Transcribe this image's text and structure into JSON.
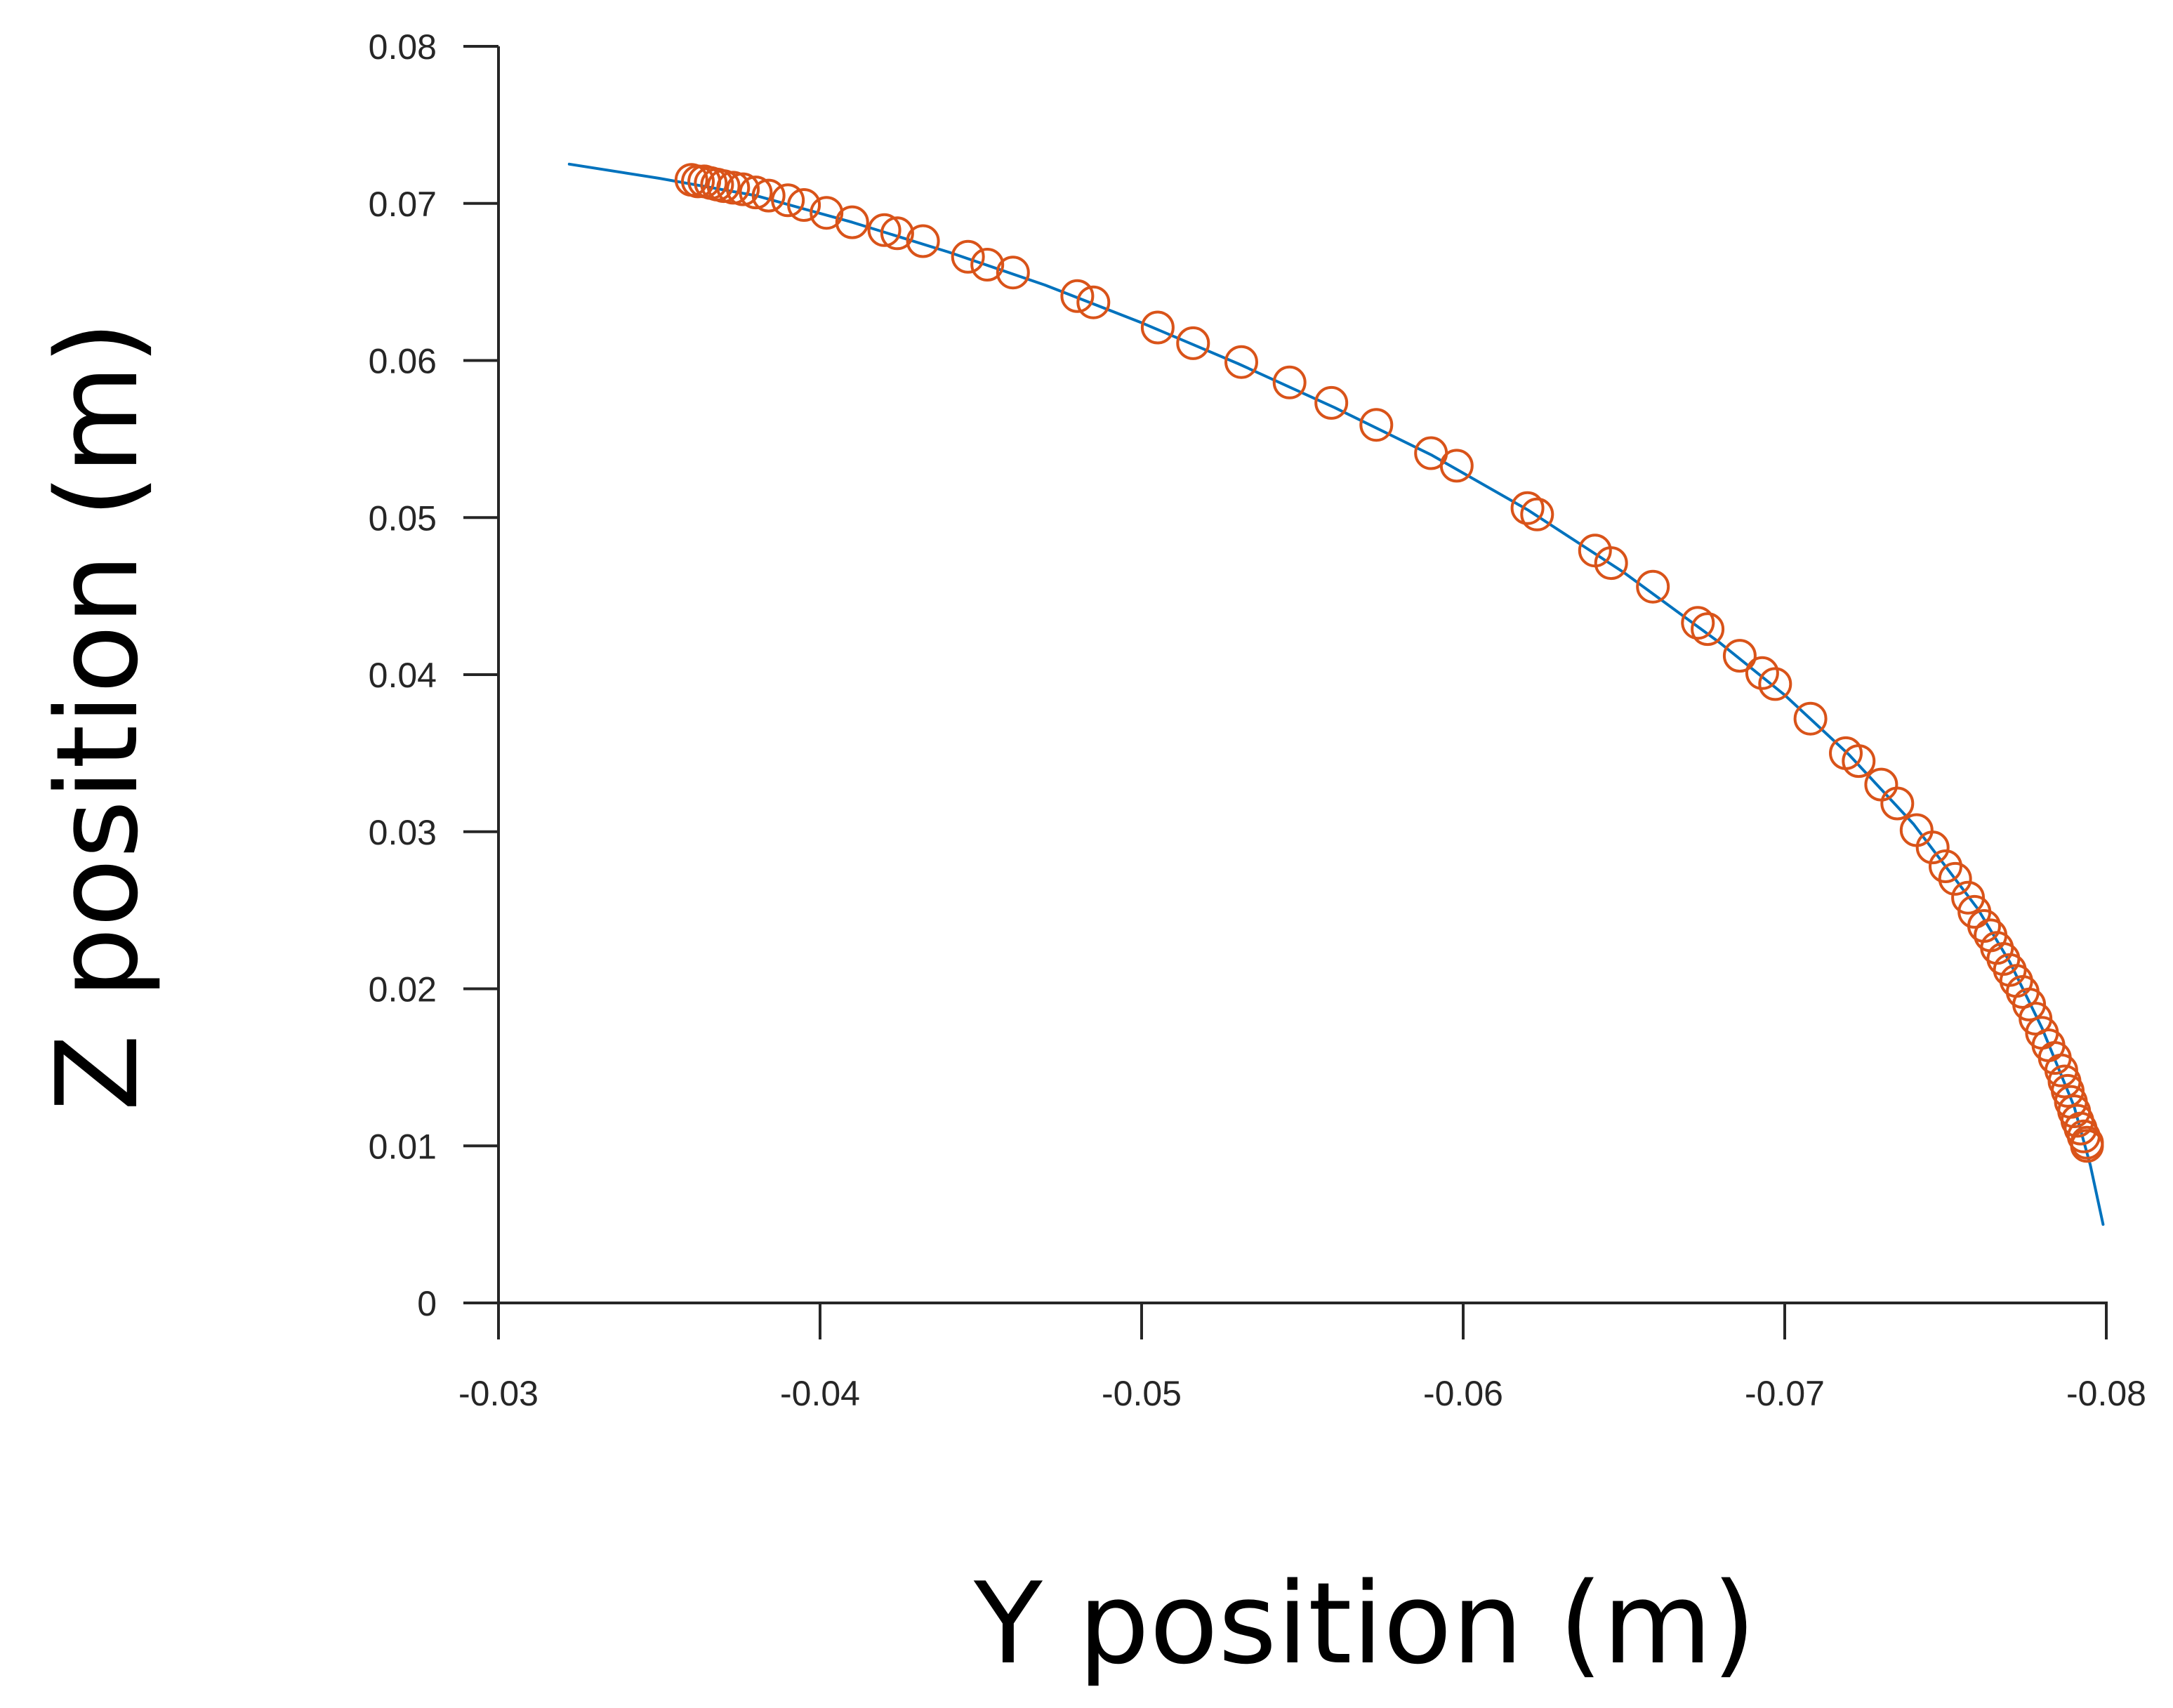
{
  "chart_data": {
    "type": "scatter",
    "xlabel": "Y position (m)",
    "ylabel": "Z position (m)",
    "xlim": [
      -0.03,
      -0.08
    ],
    "ylim": [
      0,
      0.08
    ],
    "x_reversed": true,
    "xticks": [
      -0.03,
      -0.04,
      -0.05,
      -0.06,
      -0.07,
      -0.08
    ],
    "xtick_labels": [
      "-0.03",
      "-0.04",
      "-0.05",
      "-0.06",
      "-0.07",
      "-0.08"
    ],
    "yticks": [
      0,
      0.01,
      0.02,
      0.03,
      0.04,
      0.05,
      0.06,
      0.07,
      0.08
    ],
    "ytick_labels": [
      "0",
      "0.01",
      "0.02",
      "0.03",
      "0.04",
      "0.05",
      "0.06",
      "0.07",
      "0.08"
    ],
    "grid": false,
    "legend": "none",
    "series": [
      {
        "kind": "markers",
        "marker": "open-circle",
        "color": "#d95319",
        "points": [
          [
            -0.036,
            0.0715
          ],
          [
            -0.0362,
            0.0714
          ],
          [
            -0.0364,
            0.0714
          ],
          [
            -0.0366,
            0.0713
          ],
          [
            -0.0368,
            0.0712
          ],
          [
            -0.037,
            0.0711
          ],
          [
            -0.0373,
            0.071
          ],
          [
            -0.0376,
            0.0709
          ],
          [
            -0.038,
            0.0707
          ],
          [
            -0.0384,
            0.0705
          ],
          [
            -0.039,
            0.0702
          ],
          [
            -0.0395,
            0.0699
          ],
          [
            -0.0402,
            0.0694
          ],
          [
            -0.041,
            0.0688
          ],
          [
            -0.042,
            0.0683
          ],
          [
            -0.0424,
            0.0681
          ],
          [
            -0.0432,
            0.0676
          ],
          [
            -0.0446,
            0.0666
          ],
          [
            -0.0452,
            0.0661
          ],
          [
            -0.046,
            0.0656
          ],
          [
            -0.048,
            0.0641
          ],
          [
            -0.0485,
            0.0637
          ],
          [
            -0.0505,
            0.0621
          ],
          [
            -0.0516,
            0.0611
          ],
          [
            -0.0531,
            0.0599
          ],
          [
            -0.0546,
            0.0586
          ],
          [
            -0.0559,
            0.0573
          ],
          [
            -0.0573,
            0.0559
          ],
          [
            -0.059,
            0.0541
          ],
          [
            -0.0598,
            0.0533
          ],
          [
            -0.062,
            0.0506
          ],
          [
            -0.0623,
            0.0502
          ],
          [
            -0.0641,
            0.0479
          ],
          [
            -0.0646,
            0.0471
          ],
          [
            -0.0659,
            0.0456
          ],
          [
            -0.0673,
            0.0433
          ],
          [
            -0.0676,
            0.0429
          ],
          [
            -0.0686,
            0.0412
          ],
          [
            -0.0693,
            0.0401
          ],
          [
            -0.0697,
            0.0394
          ],
          [
            -0.0708,
            0.0372
          ],
          [
            -0.0719,
            0.035
          ],
          [
            -0.0723,
            0.0345
          ],
          [
            -0.073,
            0.033
          ],
          [
            -0.0735,
            0.0318
          ],
          [
            -0.0741,
            0.0301
          ],
          [
            -0.0746,
            0.029
          ],
          [
            -0.075,
            0.0278
          ],
          [
            -0.0753,
            0.027
          ],
          [
            -0.0757,
            0.0258
          ],
          [
            -0.0759,
            0.0249
          ],
          [
            -0.0762,
            0.024
          ],
          [
            -0.0764,
            0.0234
          ],
          [
            -0.0766,
            0.0226
          ],
          [
            -0.0768,
            0.0219
          ],
          [
            -0.077,
            0.0212
          ],
          [
            -0.0772,
            0.0205
          ],
          [
            -0.0774,
            0.0198
          ],
          [
            -0.0776,
            0.019
          ],
          [
            -0.0778,
            0.0181
          ],
          [
            -0.078,
            0.0172
          ],
          [
            -0.0782,
            0.0164
          ],
          [
            -0.0784,
            0.0156
          ],
          [
            -0.0786,
            0.0148
          ],
          [
            -0.0787,
            0.0141
          ],
          [
            -0.0788,
            0.0135
          ],
          [
            -0.0789,
            0.0128
          ],
          [
            -0.079,
            0.0122
          ],
          [
            -0.0791,
            0.0116
          ],
          [
            -0.0792,
            0.0111
          ],
          [
            -0.0793,
            0.0106
          ],
          [
            -0.0794,
            0.0102
          ],
          [
            -0.0794,
            0.01
          ]
        ]
      },
      {
        "kind": "line",
        "color": "#0072bd",
        "points": [
          [
            -0.0322,
            0.0725
          ],
          [
            -0.035,
            0.0716
          ],
          [
            -0.038,
            0.0705
          ],
          [
            -0.041,
            0.0688
          ],
          [
            -0.044,
            0.0669
          ],
          [
            -0.047,
            0.0648
          ],
          [
            -0.05,
            0.0624
          ],
          [
            -0.053,
            0.0598
          ],
          [
            -0.056,
            0.057
          ],
          [
            -0.059,
            0.054
          ],
          [
            -0.062,
            0.0505
          ],
          [
            -0.065,
            0.0465
          ],
          [
            -0.068,
            0.042
          ],
          [
            -0.07,
            0.0387
          ],
          [
            -0.072,
            0.0349
          ],
          [
            -0.074,
            0.0305
          ],
          [
            -0.076,
            0.0251
          ],
          [
            -0.077,
            0.0217
          ],
          [
            -0.078,
            0.0175
          ],
          [
            -0.079,
            0.0125
          ],
          [
            -0.0795,
            0.0088
          ],
          [
            -0.0799,
            0.005
          ]
        ]
      }
    ]
  }
}
